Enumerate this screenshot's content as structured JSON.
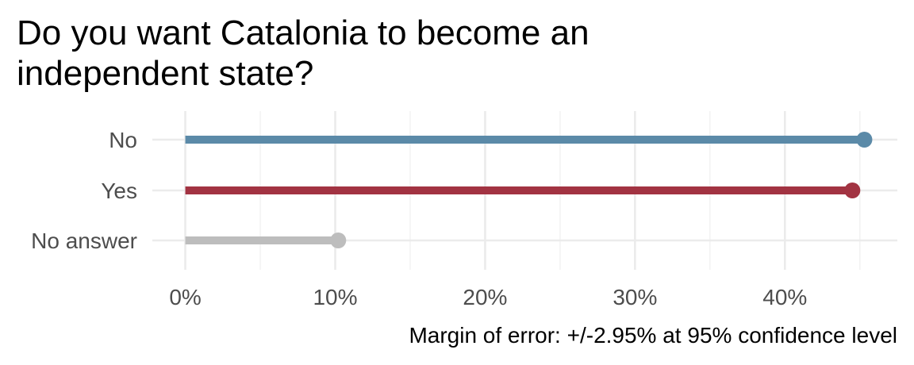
{
  "chart_data": {
    "type": "lollipop",
    "title": "Do you want Catalonia to become an independent state?",
    "title_lines": [
      "Do you want Catalonia to become an",
      "independent state?"
    ],
    "caption": "Margin of error: +/-2.95% at 95% confidence level",
    "xlabel": "",
    "ylabel": "",
    "xlim": [
      -0.022,
      0.475
    ],
    "x_ticks": [
      0,
      0.1,
      0.2,
      0.3,
      0.4
    ],
    "x_tick_labels": [
      "0%",
      "10%",
      "20%",
      "30%",
      "40%"
    ],
    "x_minor_ticks": [
      0.05,
      0.15,
      0.25,
      0.35,
      0.45
    ],
    "grid": true,
    "categories": [
      "No",
      "Yes",
      "No answer"
    ],
    "values": [
      0.453,
      0.445,
      0.102
    ],
    "colors": [
      "#5b8aa8",
      "#a23342",
      "#bdbdbd"
    ]
  }
}
